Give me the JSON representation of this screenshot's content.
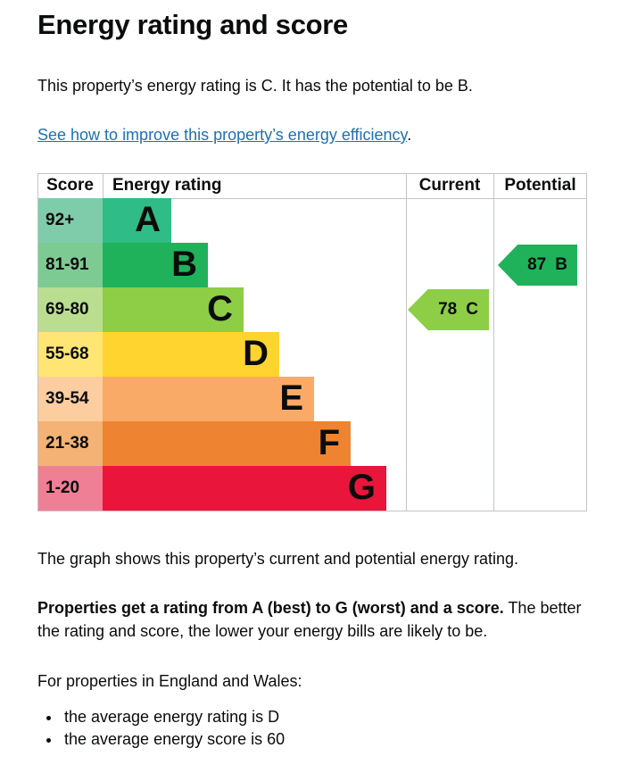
{
  "header": {
    "title": "Energy rating and score",
    "intro": "This property’s energy rating is C. It has the potential to be B.",
    "link_text": "See how to improve this property’s energy efficiency",
    "link_suffix": "."
  },
  "chart_data": {
    "type": "bar",
    "title": "Energy rating and score",
    "columns": {
      "score": "Score",
      "rating": "Energy rating",
      "current": "Current",
      "potential": "Potential"
    },
    "bands": [
      {
        "letter": "A",
        "score_range": "92+",
        "color": "#2fbc86",
        "tint_color": "#7fccaa"
      },
      {
        "letter": "B",
        "score_range": "81-91",
        "color": "#1fb25a",
        "tint_color": "#7dcb93"
      },
      {
        "letter": "C",
        "score_range": "69-80",
        "color": "#8dce46",
        "tint_color": "#bade90"
      },
      {
        "letter": "D",
        "score_range": "55-68",
        "color": "#ffd42e",
        "tint_color": "#ffe573"
      },
      {
        "letter": "E",
        "score_range": "39-54",
        "color": "#f9aa67",
        "tint_color": "#fbcd9f"
      },
      {
        "letter": "F",
        "score_range": "21-38",
        "color": "#ee8431",
        "tint_color": "#f4b274"
      },
      {
        "letter": "G",
        "score_range": "1-20",
        "color": "#e9153b",
        "tint_color": "#ef7f95"
      }
    ],
    "current": {
      "score": "78",
      "band": "C",
      "color": "#8dce46",
      "column_label": "Current"
    },
    "potential": {
      "score": "87",
      "band": "B",
      "color": "#1fb25a",
      "column_label": "Potential"
    },
    "grid_color": "#c2c4c6",
    "text_color": "#0b0c0c",
    "link_color": "#1d70b8"
  },
  "body": {
    "caption": "The graph shows this property’s current and potential energy rating.",
    "explain_bold": "Properties get a rating from A (best) to G (worst) and a score.",
    "explain_rest": "The better the rating and score, the lower your energy bills are likely to be.",
    "region_heading": "For properties in England and Wales:",
    "bullets": [
      "the average energy rating is D",
      "the average energy score is 60"
    ]
  }
}
